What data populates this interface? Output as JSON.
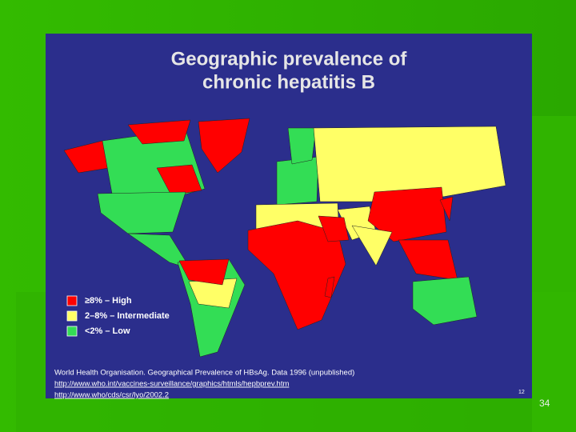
{
  "slide": {
    "title": [
      "Geographic prevalence of",
      "chronic hepatitis B"
    ],
    "legend": [
      {
        "label": "≥8% – High",
        "color": "#ff0000"
      },
      {
        "label": "2–8% – Intermediate",
        "color": "#ffff66"
      },
      {
        "label": "<2% – Low",
        "color": "#33dd55"
      }
    ],
    "citation": [
      "World Health Organisation. Geographical Prevalence of HBsAg. Data 1996 (unpublished)",
      "http://www.who.int/vaccines-surveillance/graphics/htmls/hepbprev.htm",
      "http://www.who/cds/csr/lyo/2002.2"
    ],
    "inner_number": "12",
    "slide_number": "34"
  }
}
